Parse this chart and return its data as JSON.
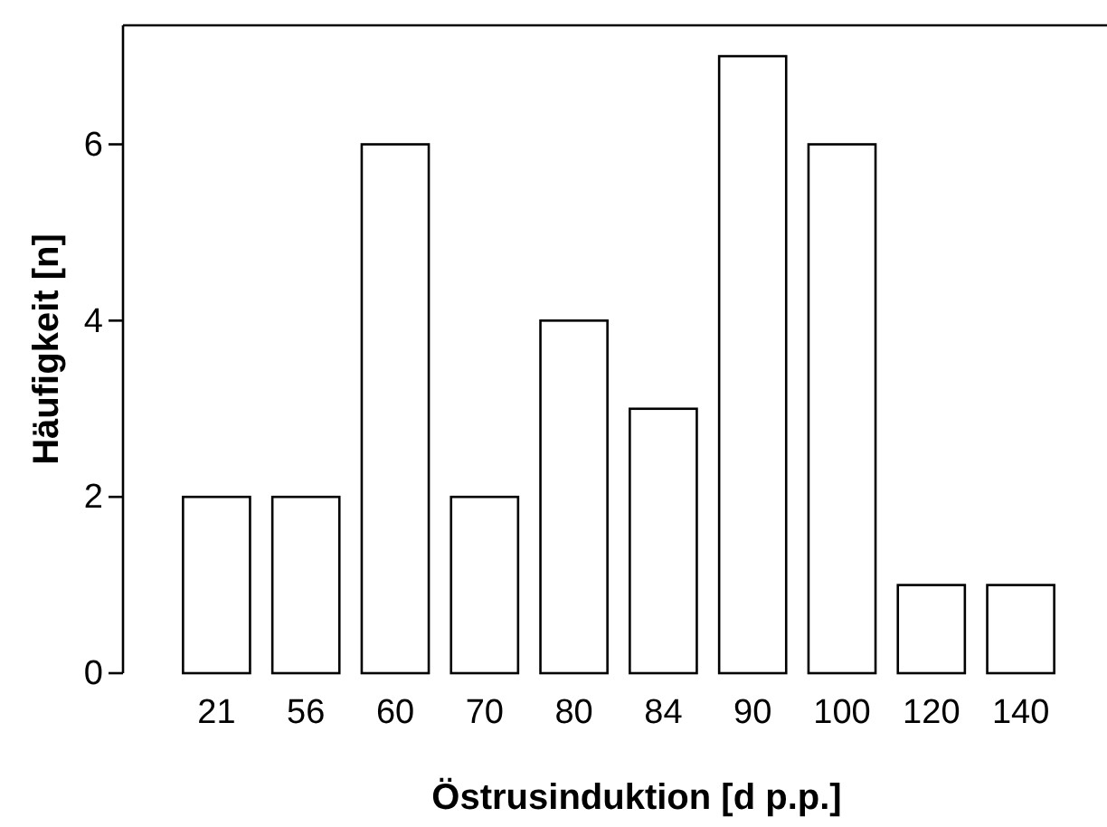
{
  "chart_data": {
    "type": "bar",
    "xlabel": "Östrusinduktion [d p.p.]",
    "ylabel": "Häufigkeit [n]",
    "categories": [
      "21",
      "56",
      "60",
      "70",
      "80",
      "84",
      "90",
      "100",
      "120",
      "140"
    ],
    "values": [
      2,
      2,
      6,
      2,
      4,
      3,
      7,
      6,
      1,
      1
    ],
    "color": "#ffffff",
    "ylim": [
      0,
      7.35
    ],
    "yticks": [
      0,
      2,
      4,
      6
    ],
    "grid": false
  }
}
